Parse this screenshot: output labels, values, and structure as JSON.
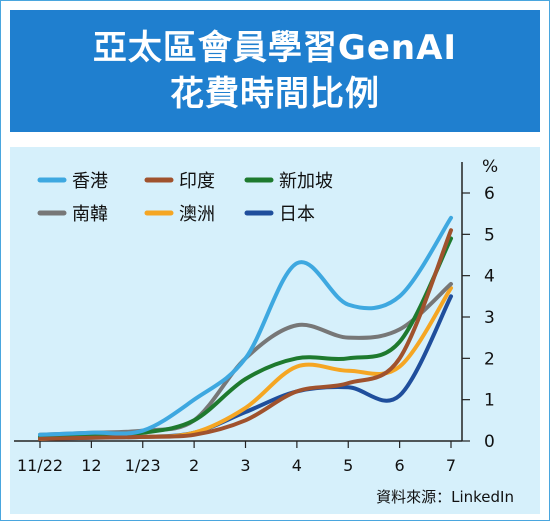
{
  "header": {
    "title_line1": "亞太區會員學習GenAI",
    "title_line2": "花費時間比例"
  },
  "source": "資料來源：LinkedIn",
  "colors": {
    "header_bg": "#1f7fcf",
    "plot_bg": "#d6f0fb"
  },
  "chart_data": {
    "type": "line",
    "title": "亞太區會員學習GenAI花費時間比例",
    "ylabel": "%",
    "ylim": [
      0,
      6
    ],
    "yticks": [
      "0",
      "1",
      "2",
      "3",
      "4",
      "5",
      "6"
    ],
    "categories": [
      "11/22",
      "12",
      "1/23",
      "2",
      "3",
      "4",
      "5",
      "6",
      "7"
    ],
    "legend_position": "top-left",
    "series": [
      {
        "name": "香港",
        "color": "#3ea8e0",
        "values": [
          0.15,
          0.2,
          0.25,
          1.0,
          2.0,
          4.3,
          3.3,
          3.5,
          5.4
        ]
      },
      {
        "name": "印度",
        "color": "#a0522d",
        "values": [
          0.05,
          0.08,
          0.1,
          0.15,
          0.5,
          1.2,
          1.4,
          2.0,
          5.1
        ]
      },
      {
        "name": "新加坡",
        "color": "#1e7a2e",
        "values": [
          0.1,
          0.15,
          0.2,
          0.5,
          1.5,
          2.0,
          2.0,
          2.4,
          4.9
        ]
      },
      {
        "name": "南韓",
        "color": "#777777",
        "values": [
          0.15,
          0.2,
          0.25,
          0.5,
          2.0,
          2.8,
          2.5,
          2.7,
          3.8
        ]
      },
      {
        "name": "澳洲",
        "color": "#f5a623",
        "values": [
          0.05,
          0.1,
          0.1,
          0.2,
          0.8,
          1.8,
          1.7,
          1.8,
          3.7
        ]
      },
      {
        "name": "日本",
        "color": "#1f4e9c",
        "values": [
          0.05,
          0.08,
          0.1,
          0.2,
          0.7,
          1.2,
          1.3,
          1.1,
          3.5
        ]
      }
    ]
  }
}
